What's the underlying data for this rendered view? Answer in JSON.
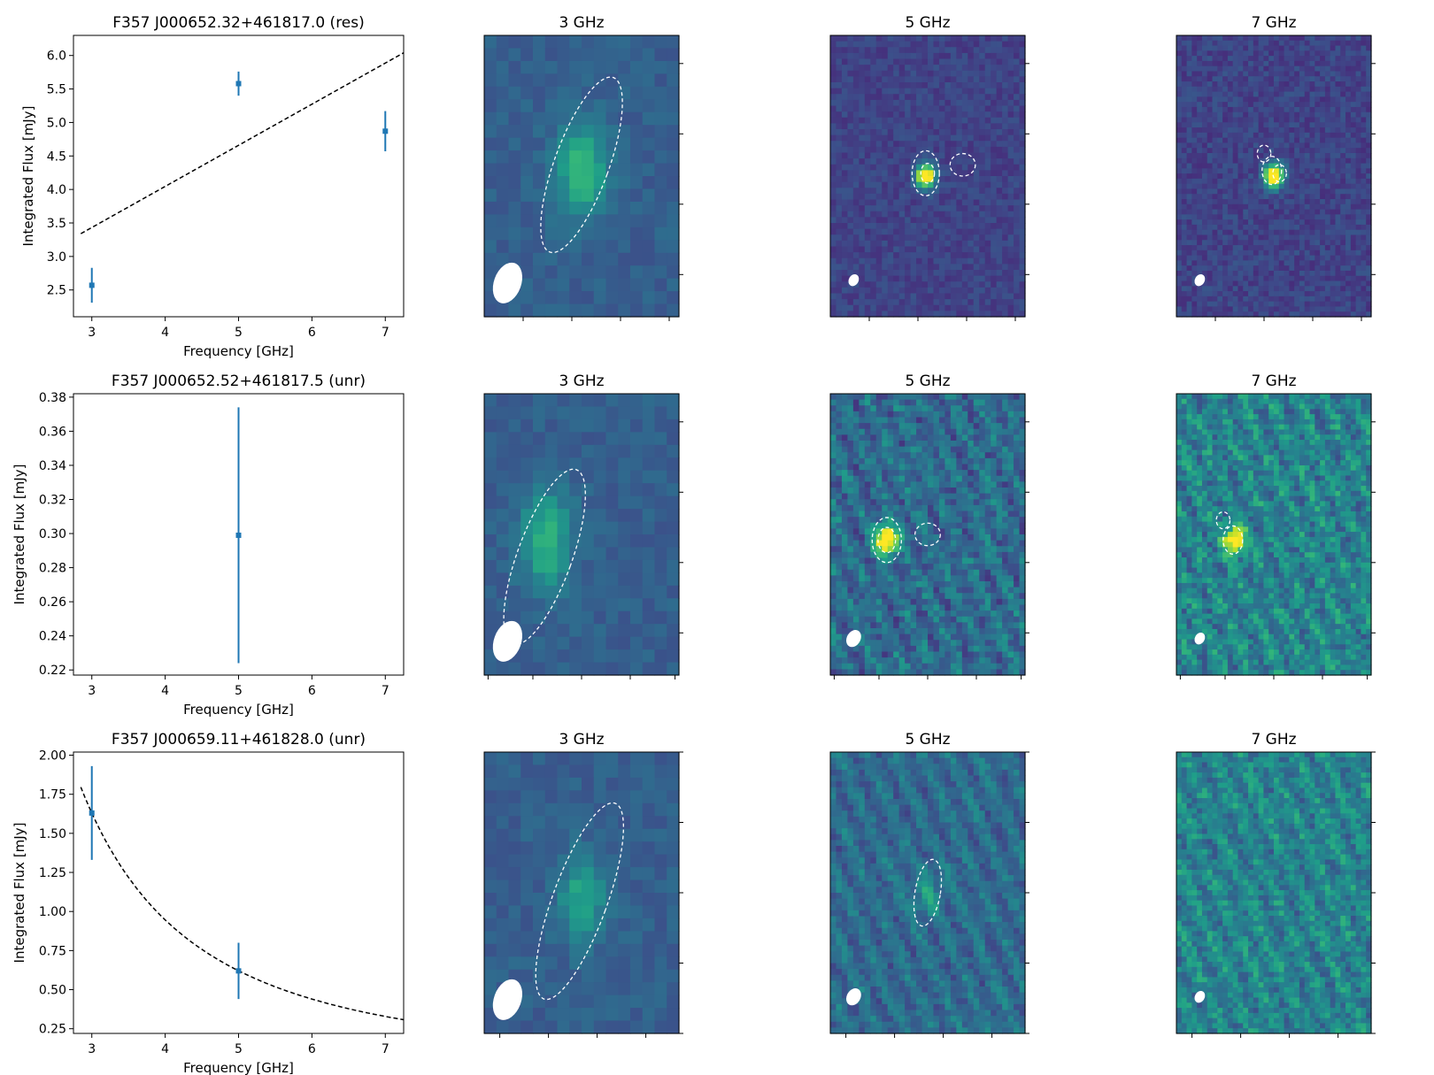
{
  "chart_data": [
    {
      "type": "scatter",
      "title": "F357 J000652.32+461817.0 (res)",
      "xlabel": "Frequency [GHz]",
      "ylabel": "Integrated Flux [mJy]",
      "xlim": [
        2.75,
        7.25
      ],
      "ylim": [
        2.1,
        6.3
      ],
      "xticks": [
        "3",
        "4",
        "5",
        "6",
        "7"
      ],
      "yticks": [
        "2.5",
        "3.0",
        "3.5",
        "4.0",
        "4.5",
        "5.0",
        "5.5",
        "6.0"
      ],
      "points": [
        {
          "x": 3,
          "y": 2.57,
          "err": 0.26
        },
        {
          "x": 5,
          "y": 5.58,
          "err": 0.18
        },
        {
          "x": 7,
          "y": 4.87,
          "err": 0.3
        }
      ],
      "fit": {
        "shape": "linear",
        "from": [
          2.85,
          3.34
        ],
        "to": [
          7.25,
          6.04
        ]
      }
    },
    {
      "type": "scatter",
      "title": "F357 J000652.52+461817.5 (unr)",
      "xlabel": "Frequency [GHz]",
      "ylabel": "Integrated Flux [mJy]",
      "xlim": [
        2.75,
        7.25
      ],
      "ylim": [
        0.217,
        0.382
      ],
      "xticks": [
        "3",
        "4",
        "5",
        "6",
        "7"
      ],
      "yticks": [
        "0.22",
        "0.24",
        "0.26",
        "0.28",
        "0.30",
        "0.32",
        "0.34",
        "0.36",
        "0.38"
      ],
      "points": [
        {
          "x": 5,
          "y": 0.299,
          "err": 0.075
        }
      ],
      "fit": null
    },
    {
      "type": "scatter",
      "title": "F357 J000659.11+461828.0 (unr)",
      "xlabel": "Frequency [GHz]",
      "ylabel": "Integrated Flux [mJy]",
      "xlim": [
        2.75,
        7.25
      ],
      "ylim": [
        0.22,
        2.02
      ],
      "xticks": [
        "3",
        "4",
        "5",
        "6",
        "7"
      ],
      "yticks": [
        "0.25",
        "0.50",
        "0.75",
        "1.00",
        "1.25",
        "1.50",
        "1.75",
        "2.00"
      ],
      "points": [
        {
          "x": 3,
          "y": 1.63,
          "err": 0.3
        },
        {
          "x": 5,
          "y": 0.62,
          "err": 0.18
        }
      ],
      "fit": {
        "shape": "powerlaw",
        "ref_x": 3,
        "ref_y": 1.63,
        "index": -1.89,
        "x_from": 2.85,
        "x_to": 7.25
      }
    }
  ],
  "image_panels": [
    {
      "title": "3 GHz",
      "seed": 11,
      "cells": [
        16,
        22
      ],
      "base": 0.3,
      "noise": 0.05,
      "source": {
        "u": 0.5,
        "v": 0.48,
        "su": 0.09,
        "sv": 0.12,
        "amp": 0.38
      },
      "contours": [
        {
          "u": 0.5,
          "v": 0.46,
          "ru": 0.14,
          "rv": 0.33,
          "rot": 20
        }
      ],
      "beam": {
        "u": 0.12,
        "v": 0.88,
        "ru": 0.07,
        "rv": 0.075,
        "rot": 20
      },
      "xticks": [
        0.2,
        0.45,
        0.7,
        0.95
      ],
      "yticks": [
        0.1,
        0.35,
        0.6,
        0.85
      ]
    },
    {
      "title": "5 GHz",
      "seed": 21,
      "cells": [
        34,
        48
      ],
      "base": 0.2,
      "noise": 0.06,
      "source": {
        "u": 0.49,
        "v": 0.5,
        "su": 0.035,
        "sv": 0.03,
        "amp": 1.0
      },
      "contours": [
        {
          "u": 0.49,
          "v": 0.49,
          "ru": 0.07,
          "rv": 0.08,
          "rot": 0
        },
        {
          "u": 0.5,
          "v": 0.49,
          "ru": 0.035,
          "rv": 0.035,
          "rot": 0
        },
        {
          "u": 0.68,
          "v": 0.46,
          "ru": 0.065,
          "rv": 0.04,
          "rot": 0
        }
      ],
      "beam": {
        "u": 0.12,
        "v": 0.87,
        "ru": 0.025,
        "rv": 0.022,
        "rot": 30
      },
      "xticks": [
        0.2,
        0.45,
        0.7,
        0.95
      ],
      "yticks": [
        0.1,
        0.35,
        0.6,
        0.85
      ]
    },
    {
      "title": "7 GHz",
      "seed": 31,
      "cells": [
        38,
        55
      ],
      "base": 0.2,
      "noise": 0.07,
      "source": {
        "u": 0.5,
        "v": 0.5,
        "su": 0.035,
        "sv": 0.03,
        "amp": 1.0
      },
      "contours": [
        {
          "u": 0.49,
          "v": 0.48,
          "ru": 0.05,
          "rv": 0.05,
          "rot": 0
        },
        {
          "u": 0.45,
          "v": 0.42,
          "ru": 0.035,
          "rv": 0.03,
          "rot": 0
        },
        {
          "u": 0.53,
          "v": 0.49,
          "ru": 0.035,
          "rv": 0.03,
          "rot": 0
        }
      ],
      "beam": {
        "u": 0.12,
        "v": 0.87,
        "ru": 0.025,
        "rv": 0.022,
        "rot": 30
      },
      "xticks": [
        0.2,
        0.45,
        0.7,
        0.95
      ],
      "yticks": [
        0.1,
        0.35,
        0.6,
        0.85
      ]
    },
    {
      "title": "3 GHz",
      "seed": 12,
      "cells": [
        16,
        22
      ],
      "base": 0.3,
      "noise": 0.05,
      "source": {
        "u": 0.32,
        "v": 0.52,
        "su": 0.09,
        "sv": 0.12,
        "amp": 0.36
      },
      "contours": [
        {
          "u": 0.31,
          "v": 0.58,
          "ru": 0.14,
          "rv": 0.33,
          "rot": 20
        }
      ],
      "beam": {
        "u": 0.12,
        "v": 0.88,
        "ru": 0.07,
        "rv": 0.075,
        "rot": 20
      },
      "xticks": [
        0.02,
        0.25,
        0.5,
        0.75,
        0.98
      ],
      "yticks": [
        0.1,
        0.35,
        0.6,
        0.85
      ]
    },
    {
      "title": "5 GHz",
      "seed": 22,
      "cells": [
        34,
        48
      ],
      "base": 0.35,
      "noise": 0.12,
      "source": {
        "u": 0.29,
        "v": 0.52,
        "su": 0.04,
        "sv": 0.035,
        "amp": 0.9
      },
      "contours": [
        {
          "u": 0.29,
          "v": 0.52,
          "ru": 0.075,
          "rv": 0.08,
          "rot": 0
        },
        {
          "u": 0.29,
          "v": 0.52,
          "ru": 0.045,
          "rv": 0.045,
          "rot": 0
        },
        {
          "u": 0.5,
          "v": 0.5,
          "ru": 0.065,
          "rv": 0.04,
          "rot": 0
        }
      ],
      "beam": {
        "u": 0.12,
        "v": 0.87,
        "ru": 0.035,
        "rv": 0.032,
        "rot": 30
      },
      "xticks": [
        0.02,
        0.25,
        0.5,
        0.75,
        0.98
      ],
      "yticks": [
        0.1,
        0.35,
        0.6,
        0.85
      ]
    },
    {
      "title": "7 GHz",
      "seed": 32,
      "cells": [
        38,
        55
      ],
      "base": 0.45,
      "noise": 0.14,
      "source": {
        "u": 0.3,
        "v": 0.52,
        "su": 0.035,
        "sv": 0.03,
        "amp": 0.8
      },
      "contours": [
        {
          "u": 0.29,
          "v": 0.52,
          "ru": 0.05,
          "rv": 0.05,
          "rot": 0
        },
        {
          "u": 0.24,
          "v": 0.45,
          "ru": 0.035,
          "rv": 0.03,
          "rot": 0
        }
      ],
      "beam": {
        "u": 0.12,
        "v": 0.87,
        "ru": 0.025,
        "rv": 0.022,
        "rot": 30
      },
      "xticks": [
        0.02,
        0.25,
        0.5,
        0.75,
        0.98
      ],
      "yticks": [
        0.1,
        0.35,
        0.6,
        0.85
      ]
    },
    {
      "title": "3 GHz",
      "seed": 13,
      "cells": [
        16,
        22
      ],
      "base": 0.3,
      "noise": 0.05,
      "source": {
        "u": 0.5,
        "v": 0.52,
        "su": 0.08,
        "sv": 0.11,
        "amp": 0.3
      },
      "contours": [
        {
          "u": 0.49,
          "v": 0.53,
          "ru": 0.14,
          "rv": 0.37,
          "rot": 20
        }
      ],
      "beam": {
        "u": 0.12,
        "v": 0.88,
        "ru": 0.07,
        "rv": 0.075,
        "rot": 20
      },
      "xticks": [
        0.08,
        0.33,
        0.58,
        0.83
      ],
      "yticks": [
        0.0,
        0.25,
        0.5,
        0.75,
        1.0
      ]
    },
    {
      "title": "5 GHz",
      "seed": 23,
      "cells": [
        34,
        48
      ],
      "base": 0.35,
      "noise": 0.08,
      "source": {
        "u": 0.5,
        "v": 0.5,
        "su": 0.05,
        "sv": 0.06,
        "amp": 0.18
      },
      "contours": [
        {
          "u": 0.5,
          "v": 0.5,
          "ru": 0.065,
          "rv": 0.12,
          "rot": 10
        }
      ],
      "beam": {
        "u": 0.12,
        "v": 0.87,
        "ru": 0.035,
        "rv": 0.032,
        "rot": 30
      },
      "xticks": [
        0.08,
        0.33,
        0.58,
        0.83
      ],
      "yticks": [
        0.0,
        0.25,
        0.5,
        0.75,
        1.0
      ]
    },
    {
      "title": "7 GHz",
      "seed": 33,
      "cells": [
        38,
        55
      ],
      "base": 0.45,
      "noise": 0.12,
      "source": null,
      "contours": [],
      "beam": {
        "u": 0.12,
        "v": 0.87,
        "ru": 0.025,
        "rv": 0.022,
        "rot": 30
      },
      "xticks": [
        0.08,
        0.33,
        0.58,
        0.83
      ],
      "yticks": [
        0.0,
        0.25,
        0.5,
        0.75,
        1.0
      ]
    }
  ]
}
